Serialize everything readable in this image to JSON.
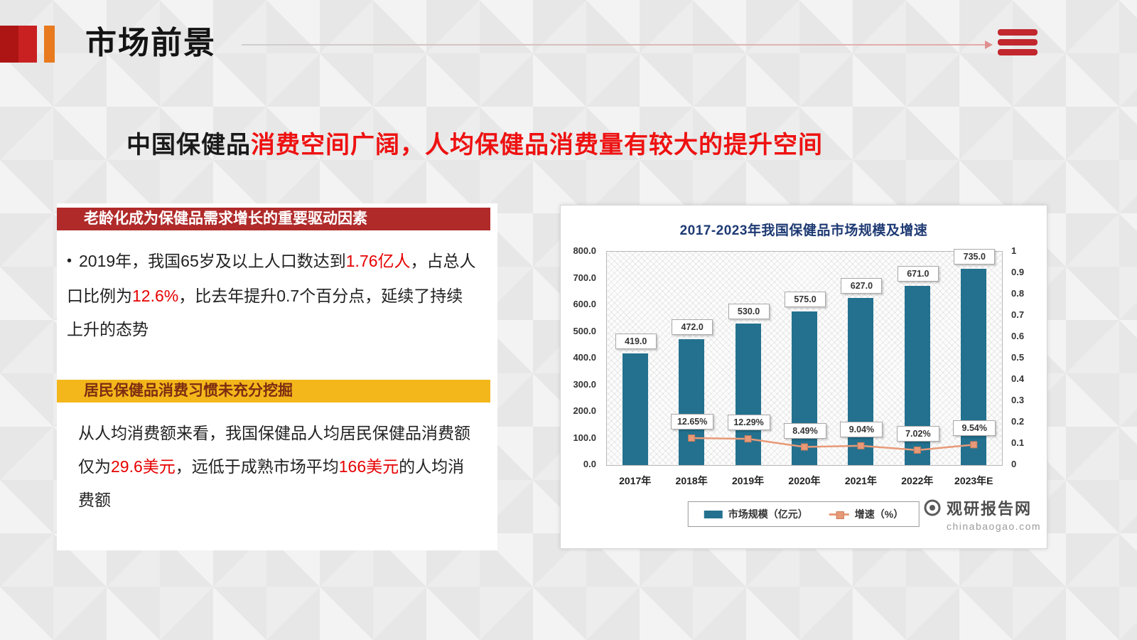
{
  "header": {
    "title": "市场前景"
  },
  "headline": {
    "prefix": "中国保健品",
    "emphasis": "消费空间广阔，人均保健品消费量有较大的提升空间"
  },
  "sections": [
    {
      "banner": "老龄化成为保健品需求增长的重要驱动因素",
      "bullet": "•",
      "segments": [
        {
          "text": "2019年，我国65岁及以上人口数达到"
        },
        {
          "text": "1.76亿人",
          "red": true
        },
        {
          "text": "，占总人口比例为"
        },
        {
          "text": "12.6%",
          "red": true
        },
        {
          "text": "，比去年提升0.7个百分点，延续了持续上升的态势"
        }
      ]
    },
    {
      "banner": "居民保健品消费习惯未充分挖掘",
      "segments": [
        {
          "text": "从人均消费额来看，我国保健品人均居民保健品消费额仅为"
        },
        {
          "text": "29.6美元",
          "red": true
        },
        {
          "text": "，远低于成熟市场平均"
        },
        {
          "text": "166美元",
          "red": true
        },
        {
          "text": "的人均消费额"
        }
      ]
    }
  ],
  "colors": {
    "accent_red": "#c1272d",
    "accent_orange": "#e87a1f",
    "banner_red": "#b02a2a",
    "banner_yellow": "#f3b71b",
    "highlight_red": "#e60000",
    "bar": "#23718f",
    "line": "#e89a78",
    "line_marker_border": "#c97c5a",
    "chart_title": "#1e3a73"
  },
  "chart_data": {
    "type": "bar",
    "title": "2017-2023年我国保健品市场规模及增速",
    "categories": [
      "2017年",
      "2018年",
      "2019年",
      "2020年",
      "2021年",
      "2022年",
      "2023年E"
    ],
    "series": [
      {
        "name": "市场规模（亿元）",
        "kind": "bar",
        "values": [
          419.0,
          472.0,
          530.0,
          575.0,
          627.0,
          671.0,
          735.0
        ]
      },
      {
        "name": "增速（%）",
        "kind": "line",
        "values": [
          null,
          12.65,
          12.29,
          8.49,
          9.04,
          7.02,
          9.54
        ]
      }
    ],
    "left_axis": {
      "min": 0,
      "max": 800,
      "step": 100,
      "labels": [
        "800.0",
        "700.0",
        "600.0",
        "500.0",
        "400.0",
        "300.0",
        "200.0",
        "100.0",
        "0.0"
      ]
    },
    "right_axis": {
      "min": 0,
      "max": 1,
      "step": 0.1,
      "labels": [
        "1",
        "0.9",
        "0.8",
        "0.7",
        "0.6",
        "0.5",
        "0.4",
        "0.3",
        "0.2",
        "0.1",
        "0"
      ]
    },
    "grid": false,
    "legend_position": "bottom"
  },
  "watermark": {
    "name": "观研报告网",
    "domain": "chinabaogao.com"
  }
}
